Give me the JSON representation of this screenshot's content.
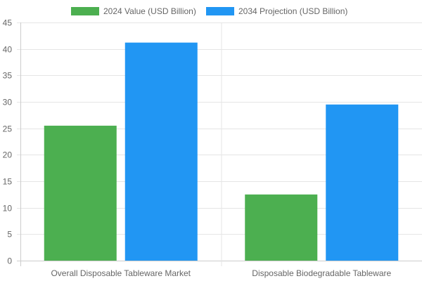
{
  "chart_data": {
    "type": "bar",
    "categories": [
      "Overall Disposable Tableware Market",
      "Disposable Biodegradable Tableware"
    ],
    "series": [
      {
        "name": "2024 Value (USD Billion)",
        "values": [
          25.5,
          12.5
        ],
        "color": "#4CAF50"
      },
      {
        "name": "2034 Projection (USD Billion)",
        "values": [
          41.2,
          29.5
        ],
        "color": "#2196F3"
      }
    ],
    "ylim": [
      0,
      45
    ],
    "yticks": [
      0,
      5,
      10,
      15,
      20,
      25,
      30,
      35,
      40,
      45
    ],
    "grid": true,
    "legend": "top"
  }
}
